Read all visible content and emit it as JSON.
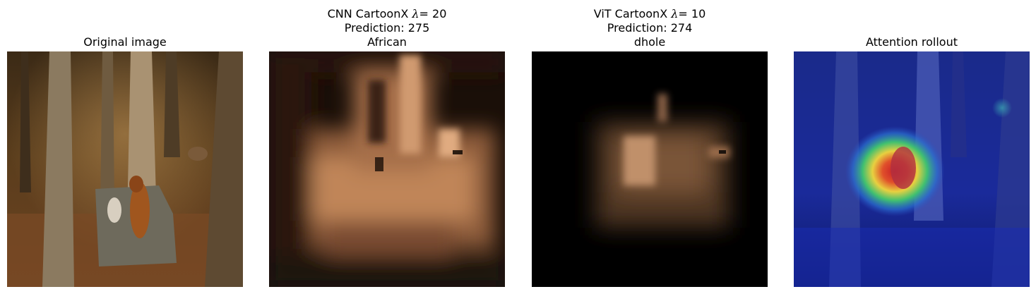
{
  "panels": [
    {
      "title": "Original image"
    },
    {
      "title_prefix": "CNN CartoonX",
      "lambda_symbol": "λ",
      "lambda_eq": "= 20",
      "prediction": "Prediction: 275",
      "label": "African"
    },
    {
      "title_prefix": "ViT CartoonX",
      "lambda_symbol": "λ",
      "lambda_eq": "= 10",
      "prediction": "Prediction: 274",
      "label": "dhole"
    },
    {
      "title": "Attention rollout"
    }
  ]
}
